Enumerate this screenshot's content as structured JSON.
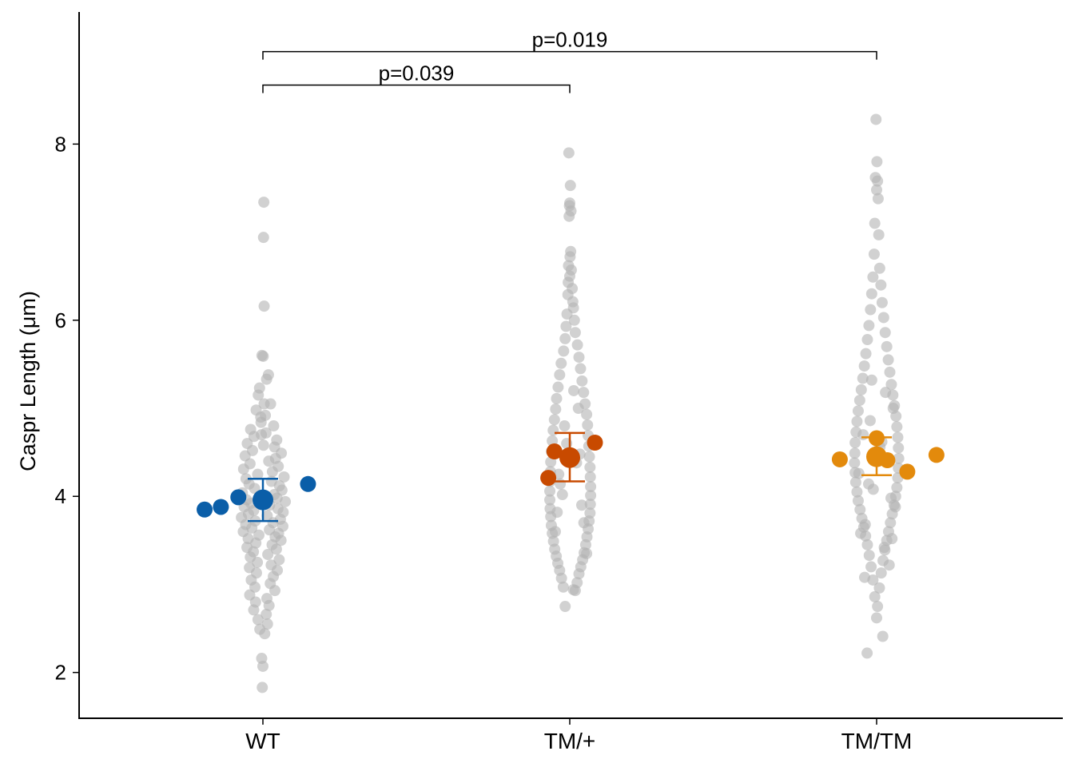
{
  "chart_data": {
    "type": "scatter",
    "title": "",
    "xlabel": "",
    "ylabel": "Caspr Length (μm)",
    "categories": [
      "WT",
      "TM/+",
      "TM/TM"
    ],
    "yticks": [
      2,
      4,
      6,
      8
    ],
    "ylim": [
      1.48,
      9.5
    ],
    "grid": false,
    "legend": "none",
    "raw_point_color": "#b3b3b3",
    "group_colors": [
      "#0a5ea8",
      "#c84a00",
      "#e38a0c"
    ],
    "group_summary": [
      {
        "category": "WT",
        "mean": 3.96,
        "error_low": 3.72,
        "error_high": 4.2,
        "replicate_means": [
          3.85,
          3.88,
          3.99,
          4.14
        ]
      },
      {
        "category": "TM/+",
        "mean": 4.44,
        "error_low": 4.17,
        "error_high": 4.72,
        "replicate_means": [
          4.21,
          4.51,
          4.61
        ]
      },
      {
        "category": "TM/TM",
        "mean": 4.45,
        "error_low": 4.24,
        "error_high": 4.67,
        "replicate_means": [
          4.42,
          4.66,
          4.41,
          4.28,
          4.47
        ]
      }
    ],
    "raw_points": [
      {
        "category": "WT",
        "x": [
          -0.002,
          0.0,
          -0.004,
          0.003,
          0.002,
          0.004,
          -0.003,
          0.001,
          0.018,
          0.012,
          -0.011,
          -0.015,
          0.025,
          -0.022,
          0.008,
          -0.006,
          0.035,
          -0.04,
          0.01,
          -0.029,
          0.045,
          -0.051,
          0.038,
          -0.034,
          0.06,
          -0.058,
          0.041,
          0.019,
          -0.042,
          0.05,
          -0.063,
          0.031,
          -0.017,
          0.069,
          -0.055,
          0.028,
          -0.045,
          0.054,
          -0.027,
          0.062,
          -0.067,
          0.037,
          -0.012,
          0.046,
          -0.053,
          0.073,
          -0.039,
          0.022,
          -0.061,
          0.049,
          -0.03,
          0.066,
          -0.047,
          0.014,
          -0.07,
          0.057,
          -0.025,
          0.033,
          -0.056,
          0.065,
          -0.036,
          0.021,
          -0.064,
          0.051,
          -0.013,
          0.04,
          -0.048,
          0.059,
          -0.023,
          0.03,
          -0.052,
          0.044,
          -0.031,
          0.016,
          -0.041,
          0.053,
          -0.018,
          0.027,
          -0.044,
          0.047,
          -0.021,
          0.034,
          -0.038,
          0.024,
          -0.026,
          0.039,
          -0.043,
          0.013,
          -0.024,
          0.02,
          -0.03,
          0.011,
          -0.016,
          0.015,
          -0.01,
          0.006,
          -0.007,
          0.004,
          -0.005,
          0.002
        ],
        "y": [
          1.83,
          2.07,
          2.16,
          7.34,
          6.94,
          6.16,
          5.6,
          5.59,
          5.38,
          5.33,
          5.23,
          5.15,
          5.05,
          4.98,
          4.92,
          4.84,
          4.8,
          4.76,
          4.72,
          4.68,
          4.64,
          4.6,
          4.56,
          4.52,
          4.49,
          4.46,
          4.43,
          4.4,
          4.37,
          4.34,
          4.31,
          4.28,
          4.25,
          4.22,
          4.2,
          4.17,
          4.14,
          4.12,
          4.09,
          4.07,
          4.04,
          4.02,
          4.0,
          3.98,
          3.96,
          3.94,
          3.92,
          3.9,
          3.88,
          3.86,
          3.84,
          3.82,
          3.8,
          3.78,
          3.76,
          3.74,
          3.72,
          3.7,
          3.68,
          3.66,
          3.64,
          3.62,
          3.6,
          3.58,
          3.56,
          3.54,
          3.52,
          3.5,
          3.47,
          3.45,
          3.42,
          3.4,
          3.37,
          3.34,
          3.31,
          3.28,
          3.25,
          3.22,
          3.19,
          3.16,
          3.13,
          3.09,
          3.05,
          3.01,
          2.97,
          2.93,
          2.88,
          2.84,
          2.8,
          2.76,
          2.71,
          2.66,
          2.6,
          2.55,
          2.49,
          2.44,
          4.9,
          5.05,
          4.7,
          4.58
        ]
      },
      {
        "category": "TM/+",
        "x": [
          -0.003,
          0.002,
          0.0,
          -0.001,
          0.004,
          -0.002,
          0.003,
          0.001,
          -0.004,
          0.005,
          0.0,
          -0.005,
          0.008,
          -0.006,
          0.01,
          0.012,
          -0.009,
          0.015,
          -0.012,
          0.018,
          -0.015,
          0.025,
          -0.02,
          0.03,
          -0.028,
          0.035,
          -0.033,
          0.04,
          -0.038,
          0.045,
          -0.043,
          0.05,
          -0.046,
          0.055,
          -0.05,
          0.058,
          -0.054,
          0.06,
          -0.057,
          0.062,
          -0.06,
          0.064,
          -0.062,
          0.066,
          -0.063,
          0.067,
          -0.064,
          0.068,
          -0.065,
          0.068,
          -0.065,
          0.067,
          -0.064,
          0.066,
          -0.062,
          0.063,
          -0.06,
          0.06,
          -0.057,
          0.056,
          -0.053,
          0.052,
          -0.049,
          0.047,
          -0.044,
          0.042,
          -0.039,
          0.036,
          -0.033,
          0.03,
          -0.027,
          0.024,
          -0.021,
          0.018,
          -0.015,
          0.012,
          -0.01,
          0.022,
          -0.031,
          0.039,
          -0.047,
          0.055,
          -0.017,
          0.028,
          -0.036,
          0.046,
          -0.024,
          0.033,
          -0.041,
          0.013
        ],
        "y": [
          7.9,
          7.53,
          7.33,
          7.3,
          7.24,
          7.18,
          6.78,
          6.72,
          6.62,
          6.57,
          6.5,
          6.43,
          6.36,
          6.29,
          6.21,
          6.14,
          6.07,
          6.0,
          5.93,
          5.86,
          5.79,
          5.72,
          5.65,
          5.58,
          5.51,
          5.45,
          5.38,
          5.31,
          5.24,
          5.18,
          5.11,
          5.05,
          4.99,
          4.93,
          4.87,
          4.81,
          4.75,
          4.69,
          4.63,
          4.57,
          4.51,
          4.45,
          4.39,
          4.33,
          4.28,
          4.22,
          4.17,
          4.11,
          4.06,
          4.01,
          3.96,
          3.91,
          3.86,
          3.81,
          3.77,
          3.72,
          3.67,
          3.63,
          3.58,
          3.54,
          3.49,
          3.45,
          3.4,
          3.36,
          3.32,
          3.28,
          3.24,
          3.2,
          3.16,
          3.12,
          3.07,
          3.02,
          2.97,
          2.93,
          2.75,
          2.94,
          4.6,
          4.38,
          4.14,
          3.9,
          3.6,
          3.35,
          4.8,
          5.0,
          4.25,
          3.7,
          4.02,
          4.48,
          3.82,
          5.2
        ]
      },
      {
        "category": "TM/TM",
        "x": [
          -0.002,
          0.001,
          -0.004,
          0.003,
          0.0,
          0.005,
          -0.006,
          0.007,
          -0.008,
          0.01,
          -0.012,
          0.014,
          -0.016,
          0.018,
          -0.02,
          0.023,
          -0.025,
          0.028,
          -0.03,
          0.033,
          -0.035,
          0.038,
          -0.04,
          0.043,
          -0.045,
          0.048,
          -0.05,
          0.053,
          -0.055,
          0.058,
          -0.06,
          0.063,
          -0.064,
          0.066,
          -0.067,
          0.069,
          -0.07,
          0.071,
          -0.071,
          0.072,
          -0.072,
          0.071,
          -0.07,
          0.069,
          -0.068,
          0.066,
          -0.064,
          0.062,
          -0.06,
          0.057,
          -0.054,
          0.051,
          -0.048,
          0.045,
          -0.042,
          0.039,
          -0.036,
          0.033,
          -0.03,
          0.027,
          -0.024,
          0.021,
          -0.018,
          0.015,
          -0.012,
          0.009,
          -0.006,
          0.003,
          0.0,
          0.02,
          -0.031,
          0.041,
          -0.052,
          0.061,
          -0.026,
          0.035,
          -0.044,
          0.054,
          -0.016,
          0.025,
          -0.037,
          0.047,
          -0.058,
          0.011,
          -0.021,
          0.029,
          -0.039,
          0.05,
          -0.011,
          0.017
        ],
        "y": [
          8.28,
          7.8,
          7.62,
          7.58,
          7.48,
          7.38,
          7.1,
          6.97,
          6.75,
          6.59,
          6.49,
          6.4,
          6.3,
          6.2,
          6.12,
          6.03,
          5.94,
          5.86,
          5.78,
          5.7,
          5.62,
          5.55,
          5.48,
          5.41,
          5.34,
          5.27,
          5.21,
          5.15,
          5.09,
          5.03,
          4.97,
          4.91,
          4.85,
          4.79,
          4.73,
          4.67,
          4.61,
          4.55,
          4.49,
          4.43,
          4.38,
          4.32,
          4.27,
          4.21,
          4.16,
          4.1,
          4.05,
          4.0,
          3.95,
          3.9,
          3.85,
          3.8,
          3.75,
          3.7,
          3.65,
          3.6,
          3.55,
          3.5,
          3.45,
          3.39,
          3.33,
          3.27,
          3.2,
          3.13,
          3.05,
          2.96,
          2.86,
          2.75,
          2.62,
          2.41,
          2.22,
          3.22,
          3.58,
          3.88,
          4.14,
          4.42,
          4.7,
          5.0,
          5.32,
          3.42,
          3.68,
          3.98,
          4.26,
          4.56,
          4.86,
          5.18,
          3.08,
          3.52,
          4.08,
          4.62
        ]
      }
    ],
    "comparisons": [
      {
        "from": "WT",
        "to": "TM/+",
        "label": "p=0.039",
        "y": 8.67
      },
      {
        "from": "WT",
        "to": "TM/TM",
        "label": "p=0.019",
        "y": 9.05
      }
    ]
  }
}
